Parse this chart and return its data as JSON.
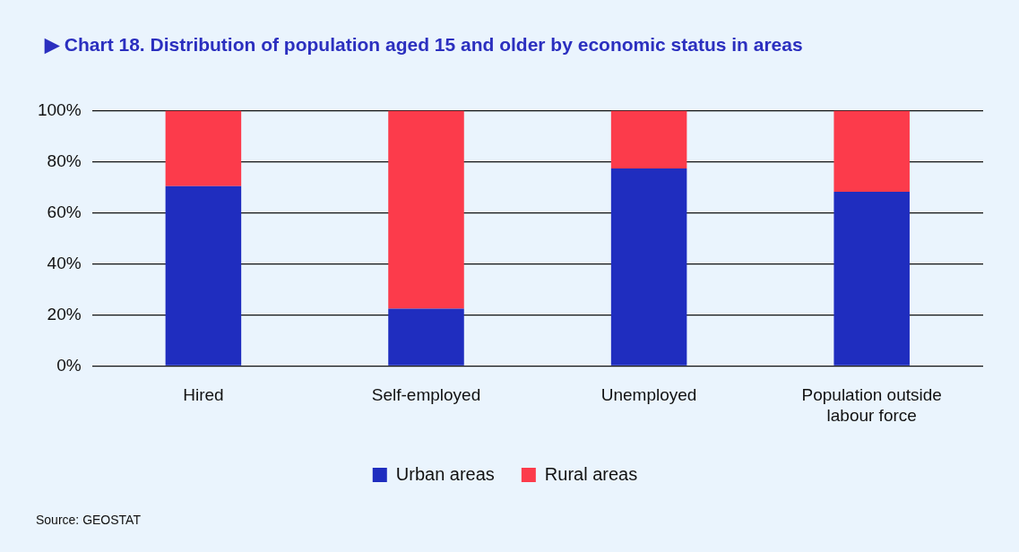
{
  "chart_data": {
    "type": "bar",
    "title": "▶ Chart 18. Distribution of population aged 15 and older by economic status in areas",
    "categories": [
      "Hired",
      "Self-employed",
      "Unemployed",
      "Population outside labour force"
    ],
    "series": [
      {
        "name": "Urban areas",
        "color": "#1f2dbf",
        "values": [
          70.4,
          22.4,
          77.3,
          68.2
        ]
      },
      {
        "name": "Rural areas",
        "color": "#fc3b4b",
        "values": [
          29.6,
          77.6,
          22.7,
          31.8
        ]
      }
    ],
    "stacked": true,
    "ylim": [
      0,
      100
    ],
    "yticks": [
      {
        "value": 0,
        "label": "0%"
      },
      {
        "value": 20,
        "label": "20%"
      },
      {
        "value": 40,
        "label": "40%"
      },
      {
        "value": 60,
        "label": "60%"
      },
      {
        "value": 80,
        "label": "80%"
      },
      {
        "value": 100,
        "label": "100%"
      }
    ],
    "grid": "y",
    "legend": "bottom",
    "annotations": [
      "Source: GEOSTAT"
    ]
  }
}
